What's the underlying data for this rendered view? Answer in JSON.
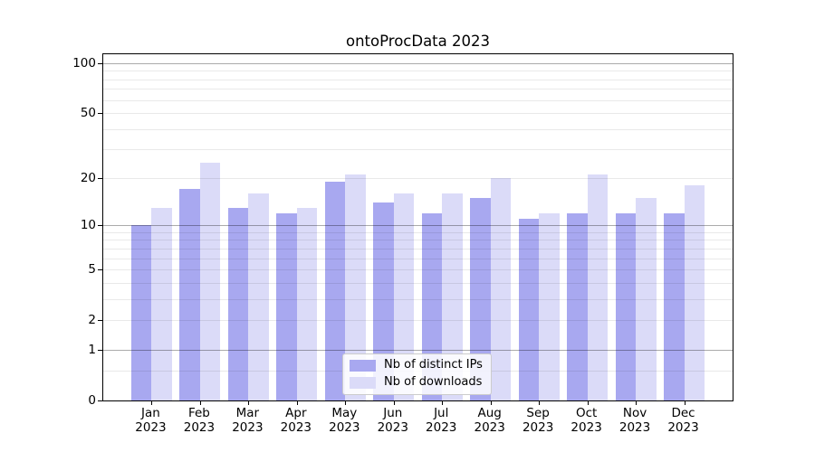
{
  "chart_data": {
    "type": "bar",
    "title": "ontoProcData 2023",
    "categories": [
      {
        "month": "Jan",
        "year": "2023"
      },
      {
        "month": "Feb",
        "year": "2023"
      },
      {
        "month": "Mar",
        "year": "2023"
      },
      {
        "month": "Apr",
        "year": "2023"
      },
      {
        "month": "May",
        "year": "2023"
      },
      {
        "month": "Jun",
        "year": "2023"
      },
      {
        "month": "Jul",
        "year": "2023"
      },
      {
        "month": "Aug",
        "year": "2023"
      },
      {
        "month": "Sep",
        "year": "2023"
      },
      {
        "month": "Oct",
        "year": "2023"
      },
      {
        "month": "Nov",
        "year": "2023"
      },
      {
        "month": "Dec",
        "year": "2023"
      }
    ],
    "series": [
      {
        "name": "Nb of distinct IPs",
        "color": "#a8a8f0",
        "values": [
          10,
          17,
          13,
          12,
          19,
          14,
          12,
          15,
          11,
          12,
          12,
          12
        ]
      },
      {
        "name": "Nb of downloads",
        "color": "#dbdbf8",
        "values": [
          13,
          25,
          16,
          13,
          21,
          16,
          16,
          20,
          12,
          21,
          15,
          18
        ]
      }
    ],
    "yscale": "log1p",
    "ylim": [
      0,
      113.3
    ],
    "y_ticks": [
      0,
      1,
      2,
      5,
      10,
      20,
      50,
      100
    ],
    "grid_major_at": [
      1,
      10,
      100
    ],
    "grid_minor_at": [
      0.5,
      2,
      3,
      4,
      5,
      6,
      7,
      8,
      9,
      20,
      30,
      40,
      50,
      60,
      70,
      80,
      90
    ],
    "grid": true,
    "legend_position": "lower center"
  },
  "colors": {
    "grid_major": "rgba(0,0,0,0.33)",
    "grid_minor": "rgba(0,0,0,0.085)",
    "axis": "#000000",
    "background": "#ffffff"
  }
}
